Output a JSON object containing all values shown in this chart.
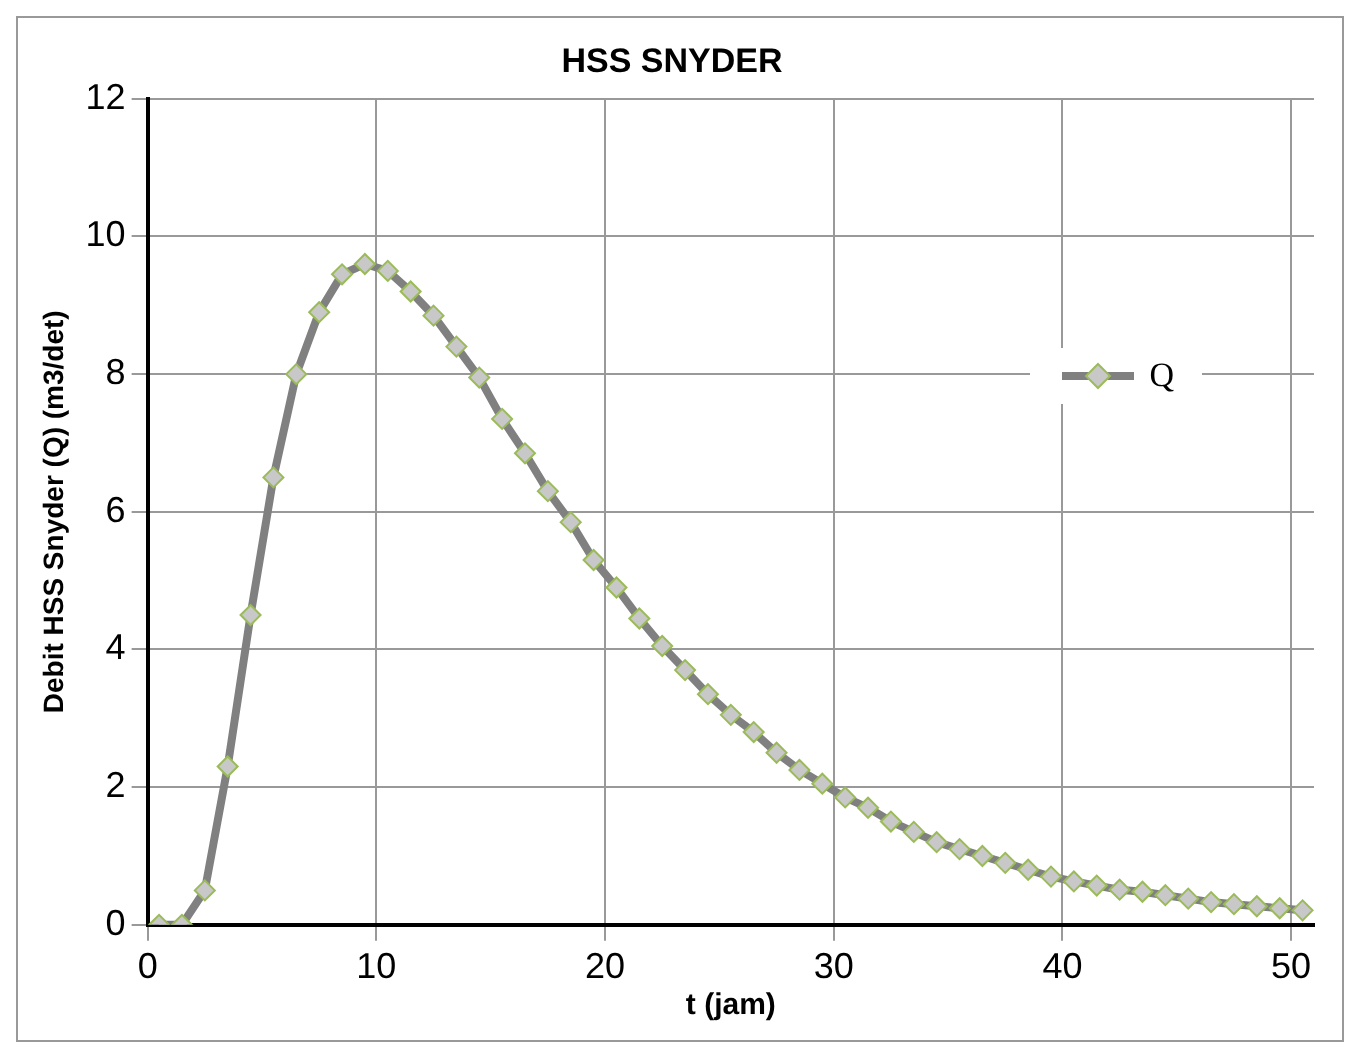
{
  "chart_data": {
    "type": "line",
    "title": "HSS SNYDER",
    "xlabel": "t (jam)",
    "ylabel": "Debit HSS Snyder (Q) (m3/det)",
    "x": [
      0.5,
      1.5,
      2.5,
      3.5,
      4.5,
      5.5,
      6.5,
      7.5,
      8.5,
      9.5,
      10.5,
      11.5,
      12.5,
      13.5,
      14.5,
      15.5,
      16.5,
      17.5,
      18.5,
      19.5,
      20.5,
      21.5,
      22.5,
      23.5,
      24.5,
      25.5,
      26.5,
      27.5,
      28.5,
      29.5,
      30.5,
      31.5,
      32.5,
      33.5,
      34.5,
      35.5,
      36.5,
      37.5,
      38.5,
      39.5,
      40.5,
      41.5,
      42.5,
      43.5,
      44.5,
      45.5,
      46.5,
      47.5,
      48.5,
      49.5,
      50.5
    ],
    "series": [
      {
        "name": "Q",
        "color": "#808080",
        "values": [
          0,
          0,
          0.5,
          2.3,
          4.5,
          6.5,
          8.0,
          8.9,
          9.45,
          9.6,
          9.5,
          9.2,
          8.85,
          8.4,
          7.95,
          7.35,
          6.85,
          6.3,
          5.85,
          5.3,
          4.9,
          4.45,
          4.05,
          3.7,
          3.35,
          3.05,
          2.8,
          2.5,
          2.25,
          2.05,
          1.85,
          1.7,
          1.5,
          1.35,
          1.2,
          1.1,
          1.0,
          0.9,
          0.8,
          0.7,
          0.63,
          0.57,
          0.51,
          0.48,
          0.43,
          0.38,
          0.33,
          0.3,
          0.27,
          0.24,
          0.21
        ]
      }
    ],
    "xlim": [
      0,
      51
    ],
    "xticks": [
      0,
      10,
      20,
      30,
      40,
      50
    ],
    "ylim": [
      0,
      12
    ],
    "yticks": [
      0,
      2,
      4,
      6,
      8,
      10,
      12
    ],
    "grid": true,
    "legend": "top right",
    "marker": "diamond",
    "line_style": "solid"
  }
}
